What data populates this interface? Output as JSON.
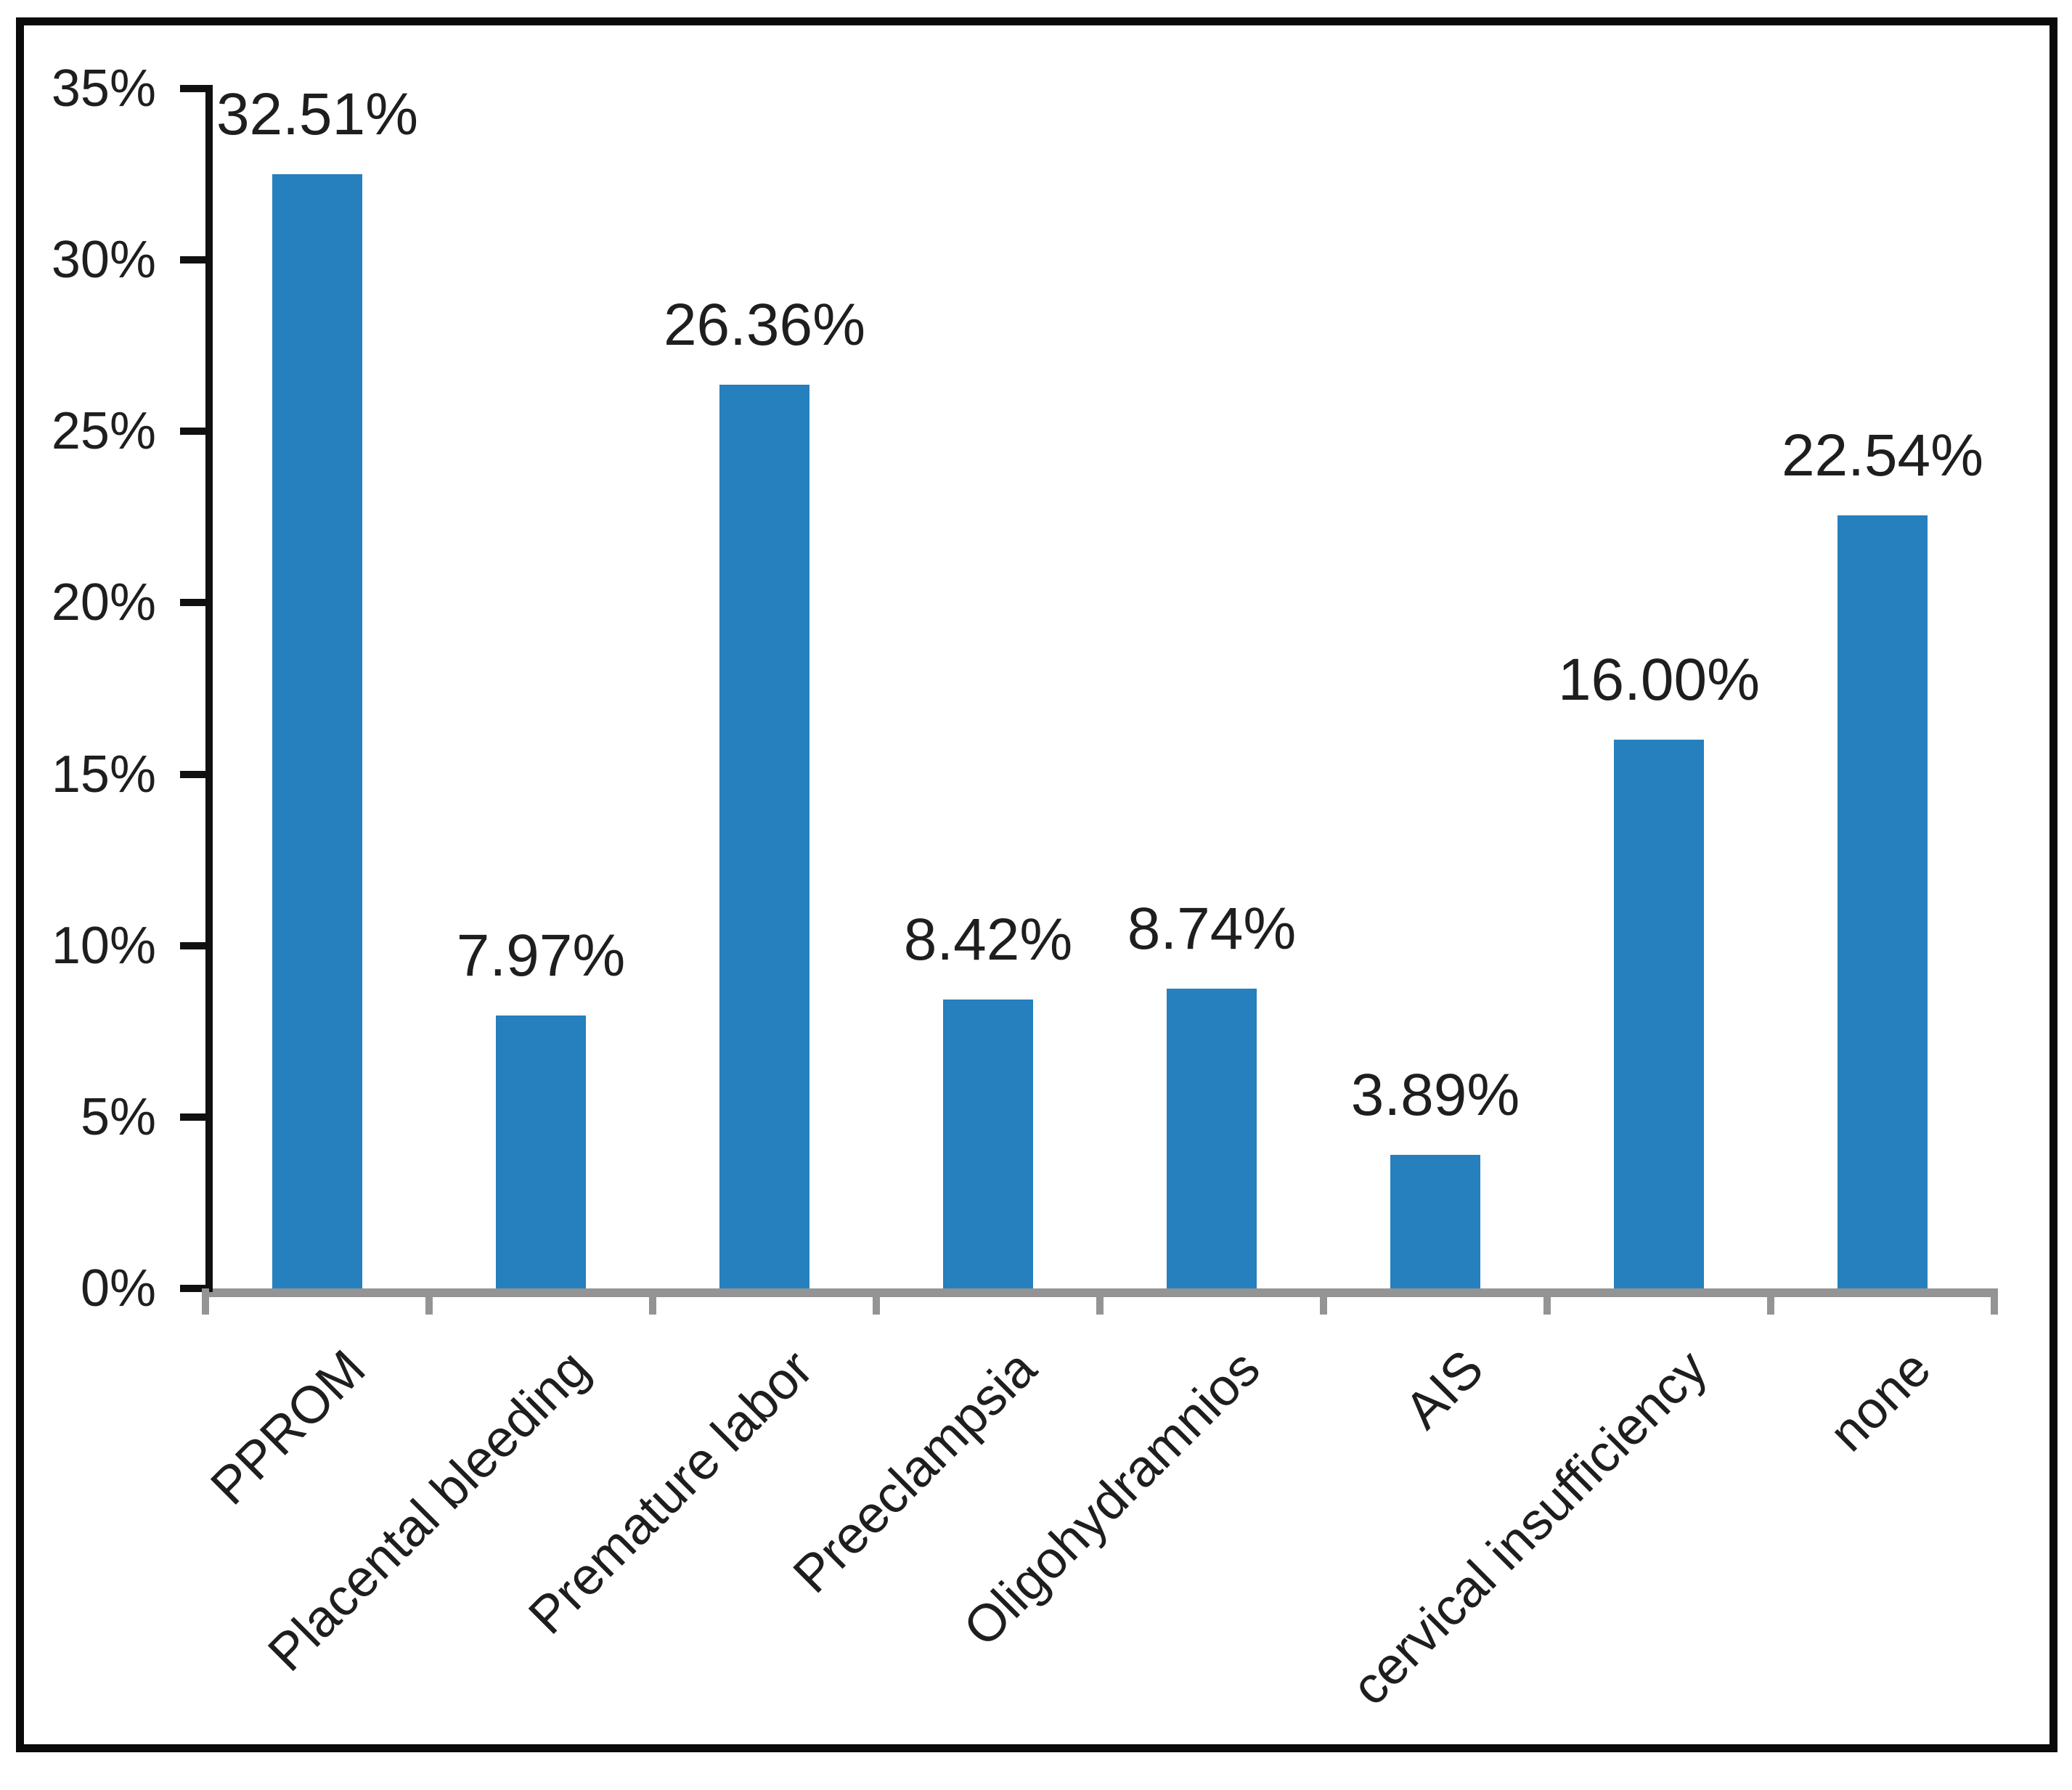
{
  "figure": {
    "background": "#ffffff",
    "border_color": "#0a0a0a"
  },
  "chart_data": {
    "type": "bar",
    "title": "",
    "xlabel": "",
    "ylabel": "",
    "categories": [
      "PPROM",
      "Placental bleeding",
      "Premature labor",
      "Preeclampsia",
      "Oligohydramnios",
      "AIS",
      "cervical insufficiency",
      "none"
    ],
    "values": [
      32.51,
      7.97,
      26.36,
      8.42,
      8.74,
      3.89,
      16.0,
      22.54
    ],
    "data_labels": [
      "32.51%",
      "7.97%",
      "26.36%",
      "8.42%",
      "8.74%",
      "3.89%",
      "16.00%",
      "22.54%"
    ],
    "ylim": [
      0,
      35
    ],
    "y_tick_step": 5,
    "y_ticks": [
      "0%",
      "5%",
      "10%",
      "15%",
      "20%",
      "25%",
      "30%",
      "35%"
    ],
    "grid": false,
    "legend": false,
    "x_label_rotation_deg": 45,
    "bar_color": "#2580bd",
    "x_axis_color": "#949494",
    "y_axis_color": "#101010",
    "text_color": "#1e1e1e"
  }
}
